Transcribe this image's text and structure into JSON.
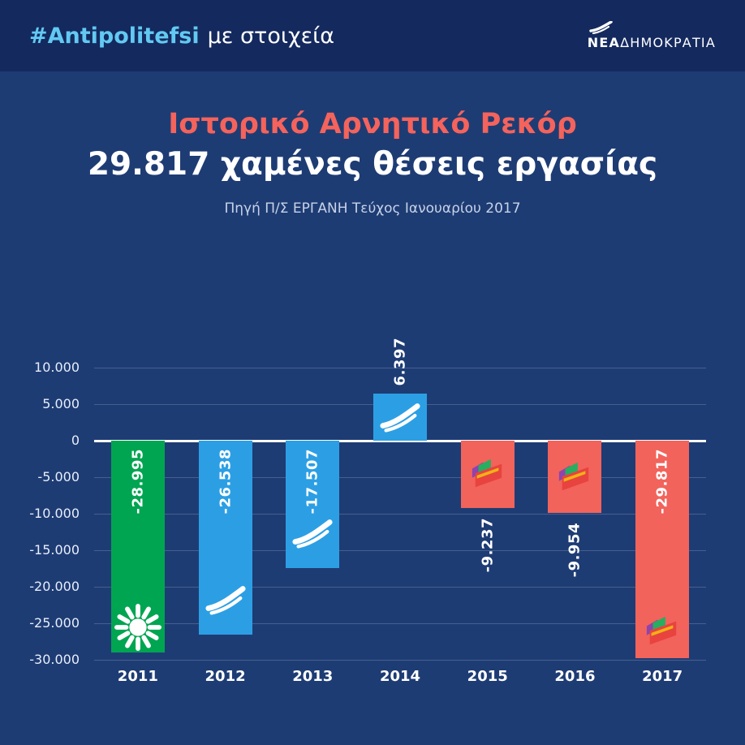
{
  "header": {
    "hashtag": "#Antipolitefsi",
    "tagline": "με στοιχεία",
    "brand_bold": "ΝΕΑ",
    "brand_rest": "ΔΗΜΟΚΡΑΤΙΑ"
  },
  "title": "Ιστορικό Αρνητικό Ρεκόρ",
  "subtitle": "29.817 χαμένες θέσεις εργασίας",
  "source": "Πηγή Π/Σ ΕΡΓΑΝΗ Τεύχος Ιανουαρίου 2017",
  "colors": {
    "background": "#1E3C74",
    "header_background": "#14295E",
    "accent_red": "#F4635C",
    "hashtag_blue": "#62C9F2",
    "bar_green": "#00A551",
    "bar_blue": "#2C9FE4",
    "bar_red": "#F2635B",
    "gridline": "rgba(255,255,255,0.18)",
    "zero_line": "#FFFFFF"
  },
  "chart_data": {
    "type": "bar",
    "title": "Ιστορικό Αρνητικό Ρεκόρ — 29.817 χαμένες θέσεις εργασίας",
    "subtitle_source": "Πηγή Π/Σ ΕΡΓΑΝΗ Τεύχος Ιανουαρίου 2017",
    "categories": [
      "2011",
      "2012",
      "2013",
      "2014",
      "2015",
      "2016",
      "2017"
    ],
    "values": [
      -28995,
      -26538,
      -17507,
      6397,
      -9237,
      -9954,
      -29817
    ],
    "labels": [
      "-28.995",
      "-26.538",
      "-17.507",
      "6.397",
      "-9.237",
      "-9.954",
      "-29.817"
    ],
    "colors": [
      "#00A551",
      "#2C9FE4",
      "#2C9FE4",
      "#2C9FE4",
      "#F2635B",
      "#F2635B",
      "#F2635B"
    ],
    "party_logos": [
      "pasok",
      "nd",
      "nd",
      "nd",
      "syriza",
      "syriza",
      "syriza"
    ],
    "xlabel": "",
    "ylabel": "",
    "ylim": [
      -30000,
      10000
    ],
    "ytick_labels": [
      "10.000",
      "5.000",
      "0",
      "-5.000",
      "-10.000",
      "-15.000",
      "-20.000",
      "-25.000",
      "-30.000"
    ],
    "grid": true,
    "legend": null,
    "value_label_rotation": -90
  }
}
